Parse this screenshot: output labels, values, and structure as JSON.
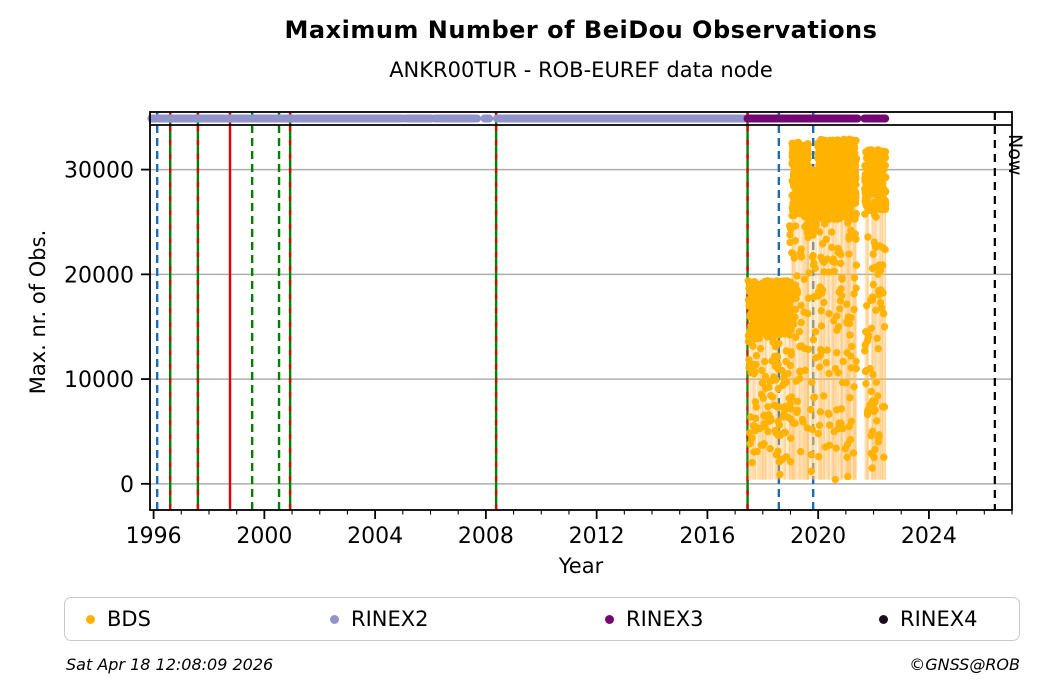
{
  "header": {
    "title": "Maximum Number of BeiDou Observations",
    "subtitle": "ANKR00TUR - ROB-EUREF data node"
  },
  "footer": {
    "generated_at": "Sat Apr 18 12:08:09 2026",
    "credit": "©GNSS@ROB"
  },
  "chart_data": {
    "type": "scatter",
    "title": "Maximum Number of BeiDou Observations",
    "subtitle": "ANKR00TUR - ROB-EUREF data node",
    "xlabel": "Year",
    "ylabel": "Max. nr. of Obs.",
    "xlim": [
      1995.87,
      2027.0
    ],
    "ylim": [
      -2500,
      35500
    ],
    "xticks_major": [
      1996,
      2000,
      2004,
      2008,
      2012,
      2016,
      2020,
      2024
    ],
    "xticks_minor_step": 1,
    "yticks": [
      0,
      10000,
      20000,
      30000
    ],
    "grid": "horizontal",
    "colors": {
      "bds": "#FFB200",
      "stem": "rgba(255,196,100,0.13)",
      "rinex2": "#9393CB",
      "rinex3": "#750775",
      "rinex4": "#1D0A1F",
      "event_green": "#008000",
      "event_red": "#DE0000",
      "event_blue": "#1C6BB5",
      "now": "#000000",
      "grid": "#ADADAD",
      "frame": "#000000"
    },
    "legend": [
      {
        "label": "BDS",
        "color": "#FFB200"
      },
      {
        "label": "RINEX2",
        "color": "#9393CB"
      },
      {
        "label": "RINEX3",
        "color": "#750775"
      },
      {
        "label": "RINEX4",
        "color": "#1D0A1F"
      }
    ],
    "now_line": {
      "year": 2026.38,
      "label": "Now",
      "style": "dashed"
    },
    "event_lines": [
      {
        "year": 1996.13,
        "color": "event_blue",
        "style": "dashed"
      },
      {
        "year": 1996.6,
        "color": "event_green",
        "style": "solid",
        "overlay": "red-dashed"
      },
      {
        "year": 1997.6,
        "color": "event_green",
        "style": "solid",
        "overlay": "red-dashed"
      },
      {
        "year": 1998.76,
        "color": "event_red",
        "style": "solid"
      },
      {
        "year": 1999.56,
        "color": "event_green",
        "style": "dashed"
      },
      {
        "year": 2000.53,
        "color": "event_green",
        "style": "dashed"
      },
      {
        "year": 2000.93,
        "color": "event_green",
        "style": "solid",
        "overlay": "red-dashed"
      },
      {
        "year": 2008.37,
        "color": "event_green",
        "style": "solid",
        "overlay": "red-dashed"
      },
      {
        "year": 2017.45,
        "color": "event_green",
        "style": "solid",
        "overlay": "red-dashed"
      },
      {
        "year": 2018.58,
        "color": "event_blue",
        "style": "dashed"
      },
      {
        "year": 2019.82,
        "color": "event_blue",
        "style": "dashed"
      }
    ],
    "rinex_bands": {
      "band_value_y": 34900,
      "rinex2_segments": [
        [
          1995.92,
          2004.97
        ],
        [
          2005.08,
          2006.02
        ],
        [
          2006.16,
          2007.68
        ],
        [
          2007.95,
          2008.12
        ],
        [
          2008.4,
          2017.45
        ]
      ],
      "rinex3_segments": [
        [
          2017.45,
          2021.42
        ],
        [
          2021.67,
          2022.42
        ]
      ],
      "rinex4_segments": []
    },
    "bds": {
      "clusters": [
        {
          "name": "mid-dense",
          "x": [
            2017.47,
            2019.02
          ],
          "y": [
            14200,
            19400
          ],
          "n": 420,
          "stem_frac": 0.3
        },
        {
          "name": "mid-low-column",
          "x": [
            2017.47,
            2019.02
          ],
          "y": [
            2000,
            14200
          ],
          "n": 110,
          "stem_frac": 0.5
        },
        {
          "name": "transition",
          "x": [
            2018.95,
            2019.25
          ],
          "y": [
            5000,
            25000
          ],
          "n": 40,
          "stem_frac": 0.5
        },
        {
          "name": "high-2019",
          "x": [
            2019.05,
            2019.65
          ],
          "y": [
            25500,
            32600
          ],
          "n": 260,
          "stem_frac": 0.3
        },
        {
          "name": "dip-2019-8",
          "x": [
            2019.6,
            2019.98
          ],
          "y": [
            24000,
            30000
          ],
          "n": 110,
          "stem_frac": 0.3
        },
        {
          "name": "high-2020-21",
          "x": [
            2019.98,
            2021.38
          ],
          "y": [
            25200,
            32900
          ],
          "n": 560,
          "stem_frac": 0.3
        },
        {
          "name": "low-column-2",
          "x": [
            2019.3,
            2021.38
          ],
          "y": [
            2500,
            25000
          ],
          "n": 150,
          "stem_frac": 0.55
        },
        {
          "name": "high-2022",
          "x": [
            2021.68,
            2022.44
          ],
          "y": [
            26000,
            31900
          ],
          "n": 230,
          "stem_frac": 0.3
        },
        {
          "name": "low-column-3",
          "x": [
            2021.68,
            2022.44
          ],
          "y": [
            2500,
            26000
          ],
          "n": 70,
          "stem_frac": 0.55
        }
      ],
      "points": [
        [
          2018.62,
          900
        ],
        [
          2020.62,
          400
        ],
        [
          2021.07,
          700
        ],
        [
          2021.95,
          1500
        ],
        [
          2019.75,
          1200
        ]
      ]
    }
  }
}
